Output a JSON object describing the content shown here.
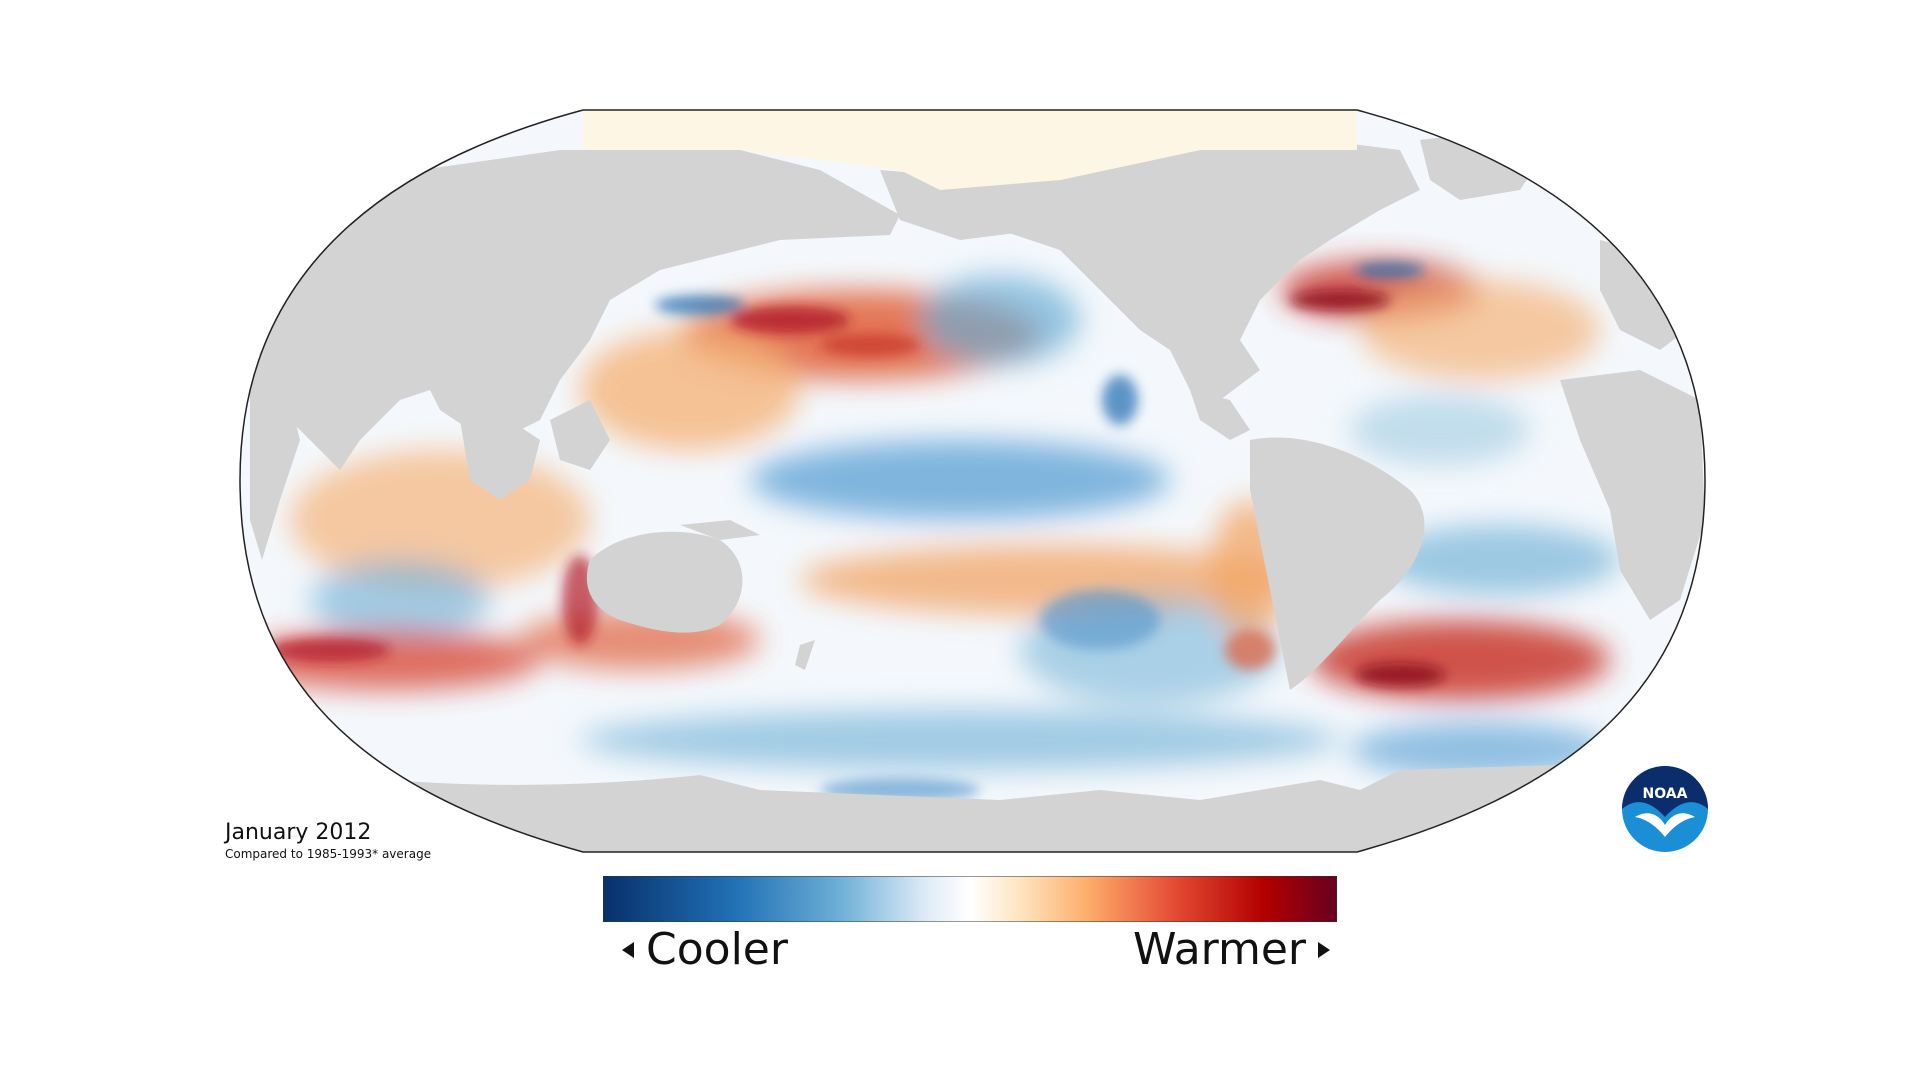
{
  "caption": {
    "title": "January 2012",
    "subtitle": "Compared to 1985-1993* average"
  },
  "legend": {
    "left_label": "Cooler",
    "right_label": "Warmer",
    "gradient_colors": [
      "#08306b",
      "#2171b5",
      "#6baed6",
      "#deebf7",
      "#ffffff",
      "#fee8c8",
      "#fdae6b",
      "#e34a33",
      "#b30000",
      "#67001f"
    ]
  },
  "logo": {
    "text": "NOAA",
    "color_dark": "#0b2d6b",
    "color_light": "#1b8fd6"
  },
  "map": {
    "land_color": "#d3d3d3",
    "ice_color": "#fdf6e4",
    "border_color": "#222222",
    "warm_color": "#e0603a",
    "hot_color": "#b2182b",
    "cool_color": "#5a9fd4",
    "cold_color": "#1f6bb0"
  }
}
